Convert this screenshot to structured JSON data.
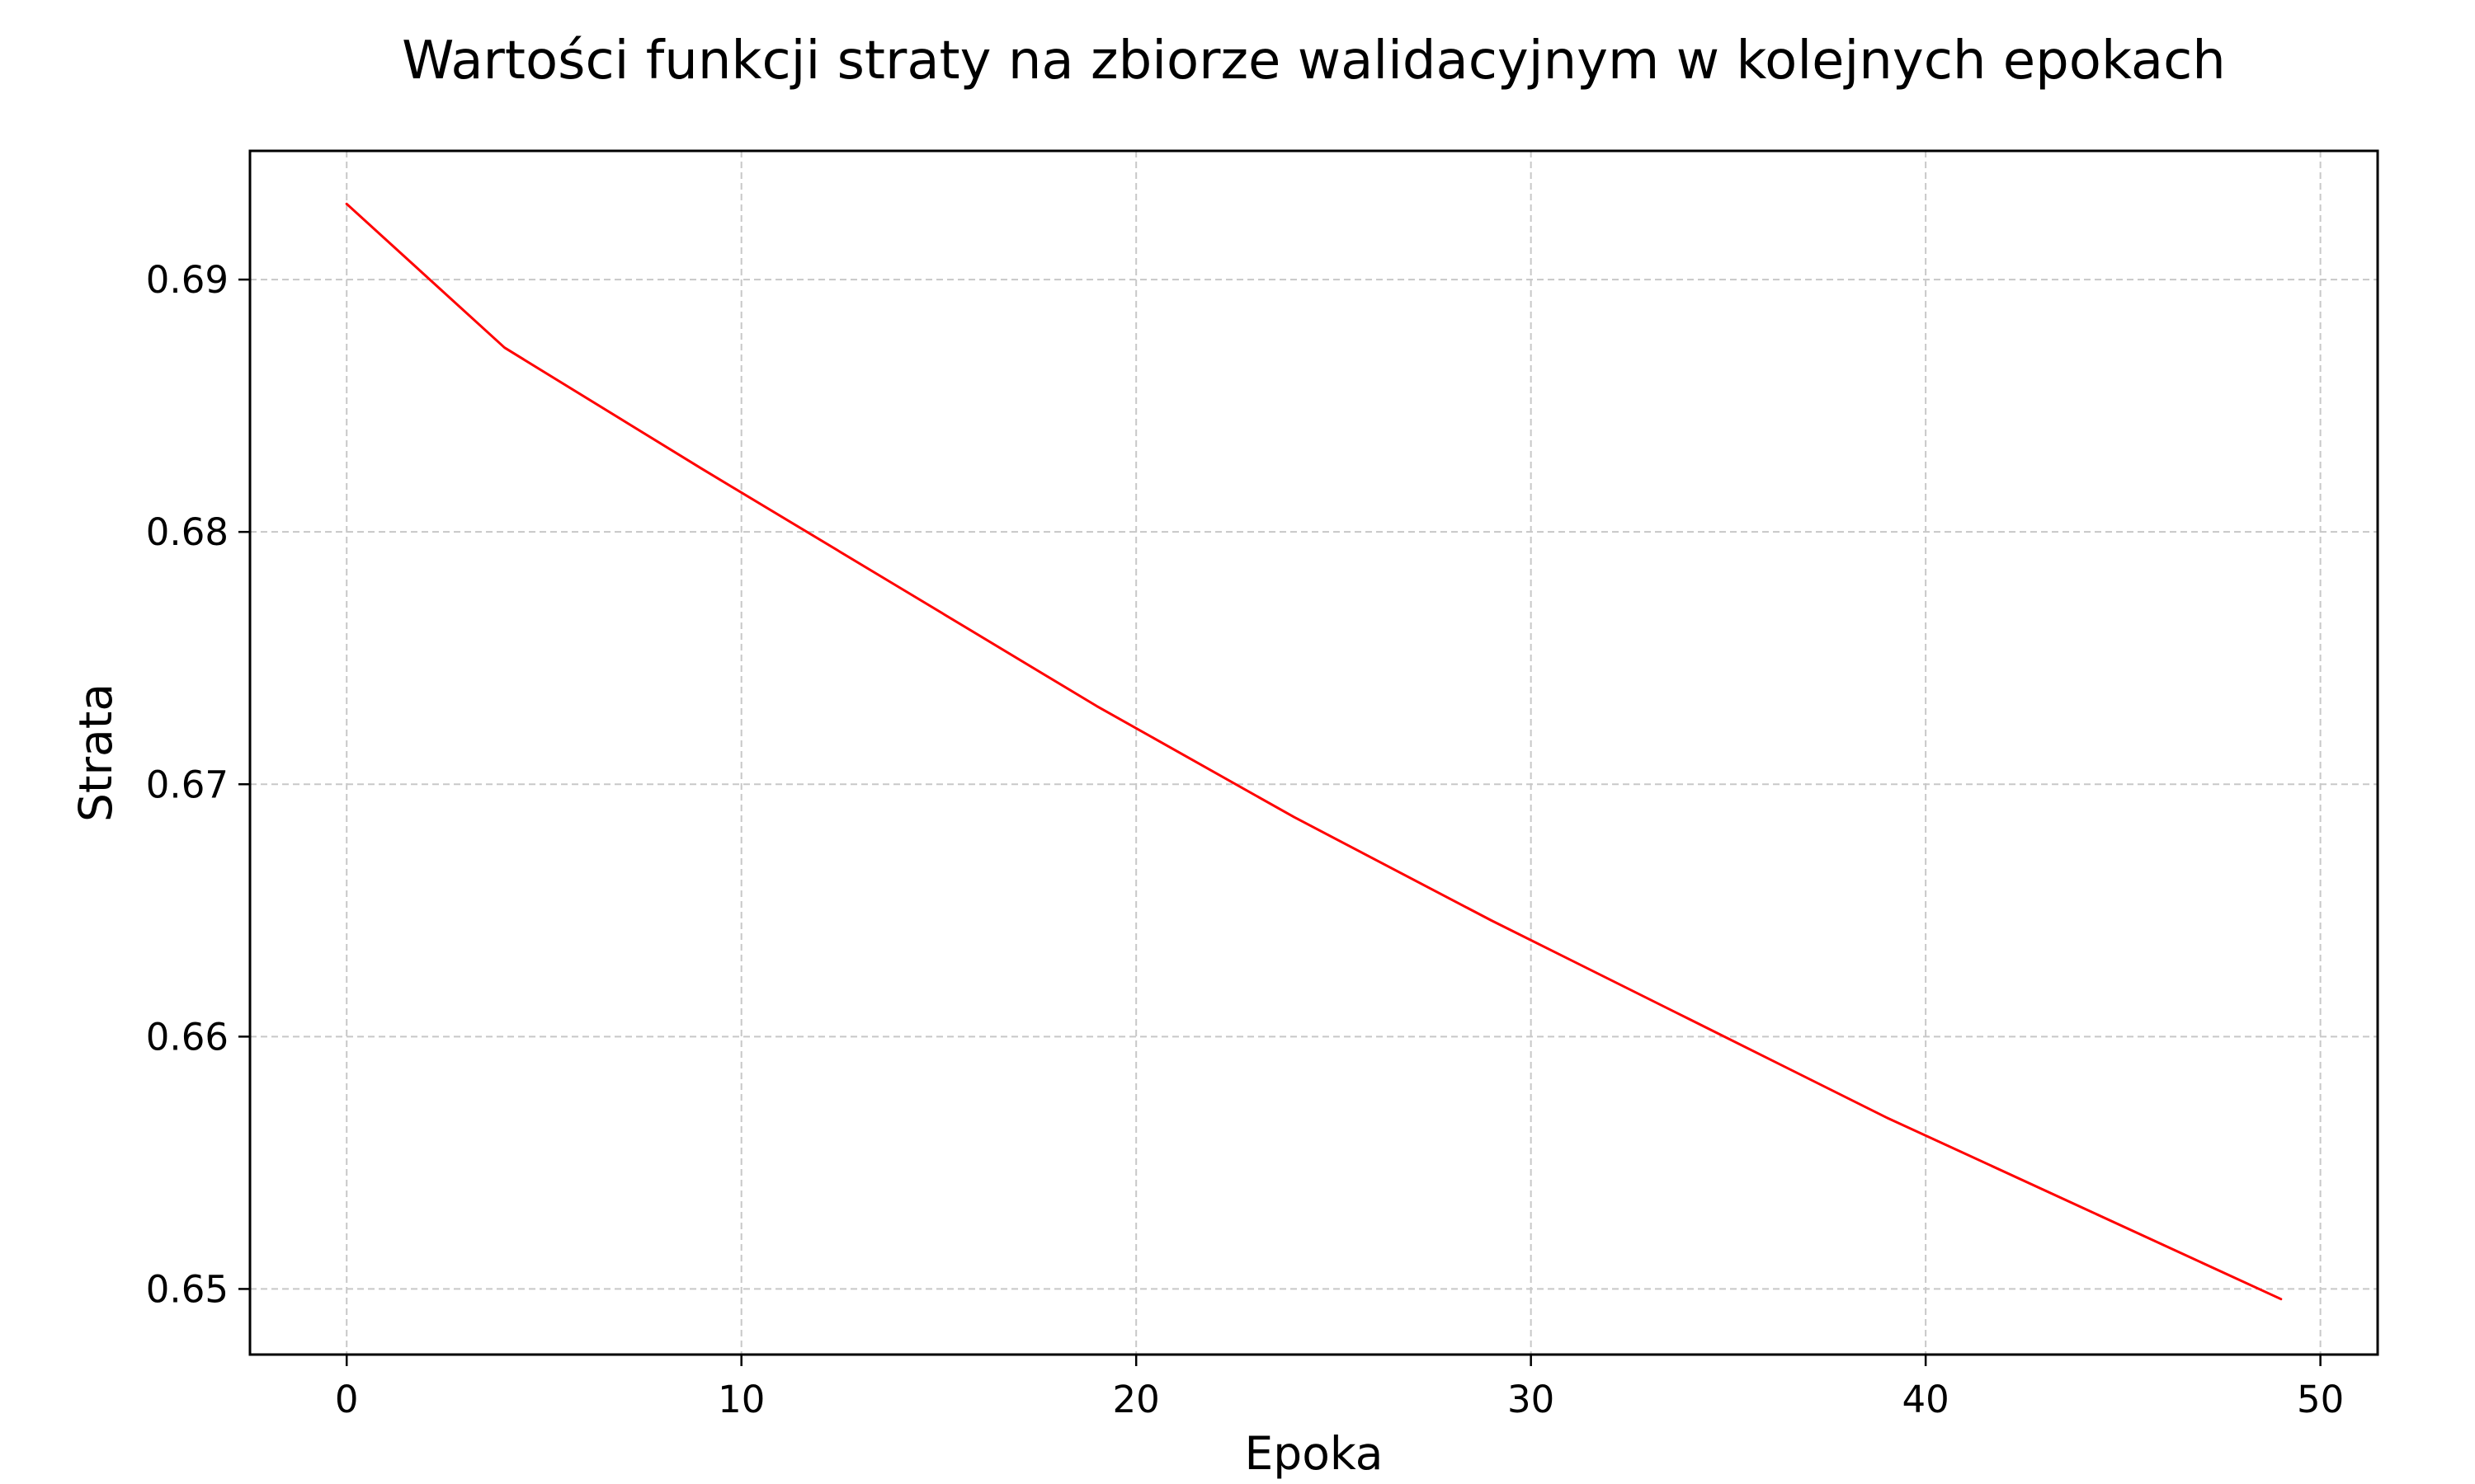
{
  "chart_data": {
    "type": "line",
    "title": "Wartości funkcji straty na zbiorze walidacyjnym w kolejnych epokach",
    "xlabel": "Epoka",
    "ylabel": "Strata",
    "xlim": [
      -2.45,
      51.45
    ],
    "ylim": [
      0.6474,
      0.6951
    ],
    "xticks": [
      0,
      10,
      20,
      30,
      40,
      50
    ],
    "xtick_labels": [
      "0",
      "10",
      "20",
      "30",
      "40",
      "50"
    ],
    "yticks": [
      0.65,
      0.66,
      0.67,
      0.68,
      0.69
    ],
    "ytick_labels": [
      "0.65",
      "0.66",
      "0.67",
      "0.68",
      "0.69"
    ],
    "grid": true,
    "series": [
      {
        "color": "#ff0000",
        "x": [
          0,
          4,
          9,
          14,
          19,
          24,
          29,
          34,
          39,
          44,
          49
        ],
        "values": [
          0.693,
          0.6873,
          0.6825,
          0.6778,
          0.6731,
          0.6687,
          0.6646,
          0.6607,
          0.6568,
          0.6532,
          0.6496
        ]
      }
    ]
  }
}
